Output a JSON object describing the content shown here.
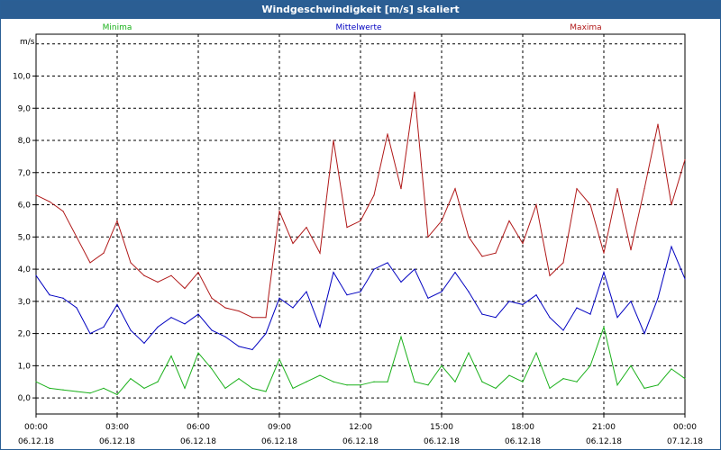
{
  "window": {
    "title": "Windgeschwindigkeit [m/s] skaliert"
  },
  "chart_data": {
    "type": "line",
    "title": "Windgeschwindigkeit [m/s] skaliert",
    "ylabel": "m/s",
    "xlabel": "",
    "ylim": [
      -0.5,
      11.3
    ],
    "xlim": [
      0,
      24
    ],
    "yticks": [
      "0,0",
      "1,0",
      "2,0",
      "3,0",
      "4,0",
      "5,0",
      "6,0",
      "7,0",
      "8,0",
      "9,0",
      "10,0"
    ],
    "ytick_values": [
      0,
      1,
      2,
      3,
      4,
      5,
      6,
      7,
      8,
      9,
      10
    ],
    "xticks": [
      {
        "hour": 0,
        "time": "00:00",
        "date": "06.12.18"
      },
      {
        "hour": 3,
        "time": "03:00",
        "date": "06.12.18"
      },
      {
        "hour": 6,
        "time": "06:00",
        "date": "06.12.18"
      },
      {
        "hour": 9,
        "time": "09:00",
        "date": "06.12.18"
      },
      {
        "hour": 12,
        "time": "12:00",
        "date": "06.12.18"
      },
      {
        "hour": 15,
        "time": "15:00",
        "date": "06.12.18"
      },
      {
        "hour": 18,
        "time": "18:00",
        "date": "06.12.18"
      },
      {
        "hour": 21,
        "time": "21:00",
        "date": "06.12.18"
      },
      {
        "hour": 24,
        "time": "00:00",
        "date": "07.12.18"
      }
    ],
    "grid": true,
    "legend": "top",
    "series": [
      {
        "name": "Minima",
        "color": "#19b019",
        "hours": [
          0,
          0.5,
          1,
          1.5,
          2,
          2.5,
          3,
          3.5,
          4,
          4.5,
          5,
          5.5,
          6,
          6.5,
          7,
          7.5,
          8,
          8.5,
          9,
          9.5,
          10,
          10.5,
          11,
          11.5,
          12,
          12.5,
          13,
          13.5,
          14,
          14.5,
          15,
          15.5,
          16,
          16.5,
          17,
          17.5,
          18,
          18.5,
          19,
          19.5,
          20,
          20.5,
          21,
          21.5,
          22,
          22.5,
          23,
          23.5,
          24
        ],
        "values": [
          0.5,
          0.3,
          0.25,
          0.2,
          0.15,
          0.3,
          0.1,
          0.6,
          0.3,
          0.5,
          1.3,
          0.3,
          1.4,
          0.9,
          0.3,
          0.6,
          0.3,
          0.2,
          1.2,
          0.3,
          0.5,
          0.7,
          0.5,
          0.4,
          0.4,
          0.5,
          0.5,
          1.9,
          0.5,
          0.4,
          1.0,
          0.5,
          1.4,
          0.5,
          0.3,
          0.7,
          0.5,
          1.4,
          0.3,
          0.6,
          0.5,
          1.0,
          2.2,
          0.4,
          1.0,
          0.3,
          0.4,
          0.9,
          0.6
        ]
      },
      {
        "name": "Mittelwerte",
        "color": "#0000c0",
        "hours": [
          0,
          0.5,
          1,
          1.5,
          2,
          2.5,
          3,
          3.5,
          4,
          4.5,
          5,
          5.5,
          6,
          6.5,
          7,
          7.5,
          8,
          8.5,
          9,
          9.5,
          10,
          10.5,
          11,
          11.5,
          12,
          12.5,
          13,
          13.5,
          14,
          14.5,
          15,
          15.5,
          16,
          16.5,
          17,
          17.5,
          18,
          18.5,
          19,
          19.5,
          20,
          20.5,
          21,
          21.5,
          22,
          22.5,
          23,
          23.5,
          24
        ],
        "values": [
          3.8,
          3.2,
          3.1,
          2.8,
          2.0,
          2.2,
          2.9,
          2.1,
          1.7,
          2.2,
          2.5,
          2.3,
          2.6,
          2.1,
          1.9,
          1.6,
          1.5,
          2.0,
          3.1,
          2.8,
          3.3,
          2.2,
          3.9,
          3.2,
          3.3,
          4.0,
          4.2,
          3.6,
          4.0,
          3.1,
          3.3,
          3.9,
          3.3,
          2.6,
          2.5,
          3.0,
          2.9,
          3.2,
          2.5,
          2.1,
          2.8,
          2.6,
          3.9,
          2.5,
          3.0,
          2.0,
          3.1,
          4.7,
          3.7
        ]
      },
      {
        "name": "Maxima",
        "color": "#b01818",
        "hours": [
          0,
          0.5,
          1,
          1.5,
          2,
          2.5,
          3,
          3.5,
          4,
          4.5,
          5,
          5.5,
          6,
          6.5,
          7,
          7.5,
          8,
          8.5,
          9,
          9.5,
          10,
          10.5,
          11,
          11.5,
          12,
          12.5,
          13,
          13.5,
          14,
          14.5,
          15,
          15.5,
          16,
          16.5,
          17,
          17.5,
          18,
          18.5,
          19,
          19.5,
          20,
          20.5,
          21,
          21.5,
          22,
          22.5,
          23,
          23.5,
          24
        ],
        "values": [
          6.3,
          6.1,
          5.8,
          5.0,
          4.2,
          4.5,
          5.5,
          4.2,
          3.8,
          3.6,
          3.8,
          3.4,
          3.9,
          3.1,
          2.8,
          2.7,
          2.5,
          2.5,
          5.8,
          4.8,
          5.3,
          4.5,
          8.0,
          5.3,
          5.5,
          6.3,
          8.2,
          6.5,
          9.5,
          5.0,
          5.5,
          6.5,
          5.0,
          4.4,
          4.5,
          5.5,
          4.8,
          6.0,
          3.8,
          4.2,
          6.5,
          6.0,
          4.5,
          6.5,
          4.6,
          6.5,
          8.5,
          6.0,
          7.4
        ]
      }
    ]
  }
}
